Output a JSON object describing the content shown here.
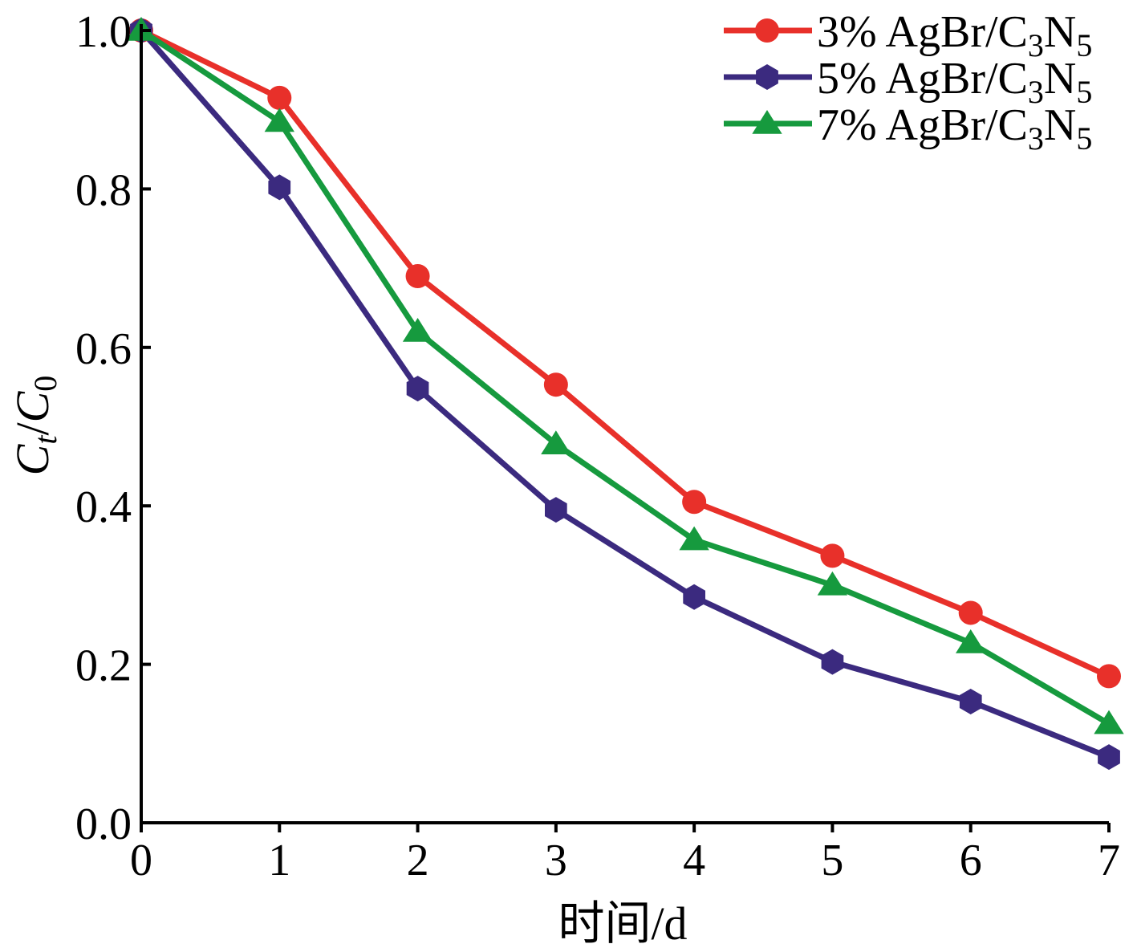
{
  "chart_data": {
    "type": "line",
    "xlabel": "时间/d",
    "ylabel": {
      "c1_base": "C",
      "c1_sub": "t",
      "slash": "/",
      "c2_base": "C",
      "c2_sub": "0"
    },
    "xlim": [
      0,
      7
    ],
    "ylim": [
      0.0,
      1.0
    ],
    "x_ticks": [
      "0",
      "1",
      "2",
      "3",
      "4",
      "5",
      "6",
      "7"
    ],
    "y_ticks": [
      "0.0",
      "0.2",
      "0.4",
      "0.6",
      "0.8",
      "1.0"
    ],
    "x": [
      0,
      1,
      2,
      3,
      4,
      5,
      6,
      7
    ],
    "grid": false,
    "legend_position": "top-right",
    "series": [
      {
        "pct": "3%",
        "compound": "AgBr/C",
        "sub1": "3",
        "mid": "N",
        "sub2": "5",
        "color": "#e8302a",
        "marker": "circle",
        "values": [
          1.0,
          0.915,
          0.69,
          0.553,
          0.405,
          0.337,
          0.265,
          0.185
        ]
      },
      {
        "pct": "5%",
        "compound": "AgBr/C",
        "sub1": "3",
        "mid": "N",
        "sub2": "5",
        "color": "#3b2a7f",
        "marker": "hexagon",
        "values": [
          1.0,
          0.802,
          0.548,
          0.395,
          0.285,
          0.203,
          0.153,
          0.083
        ]
      },
      {
        "pct": "7%",
        "compound": "AgBr/C",
        "sub1": "3",
        "mid": "N",
        "sub2": "5",
        "color": "#169a3e",
        "marker": "triangle",
        "values": [
          1.0,
          0.885,
          0.62,
          0.478,
          0.357,
          0.3,
          0.227,
          0.125
        ]
      }
    ]
  }
}
